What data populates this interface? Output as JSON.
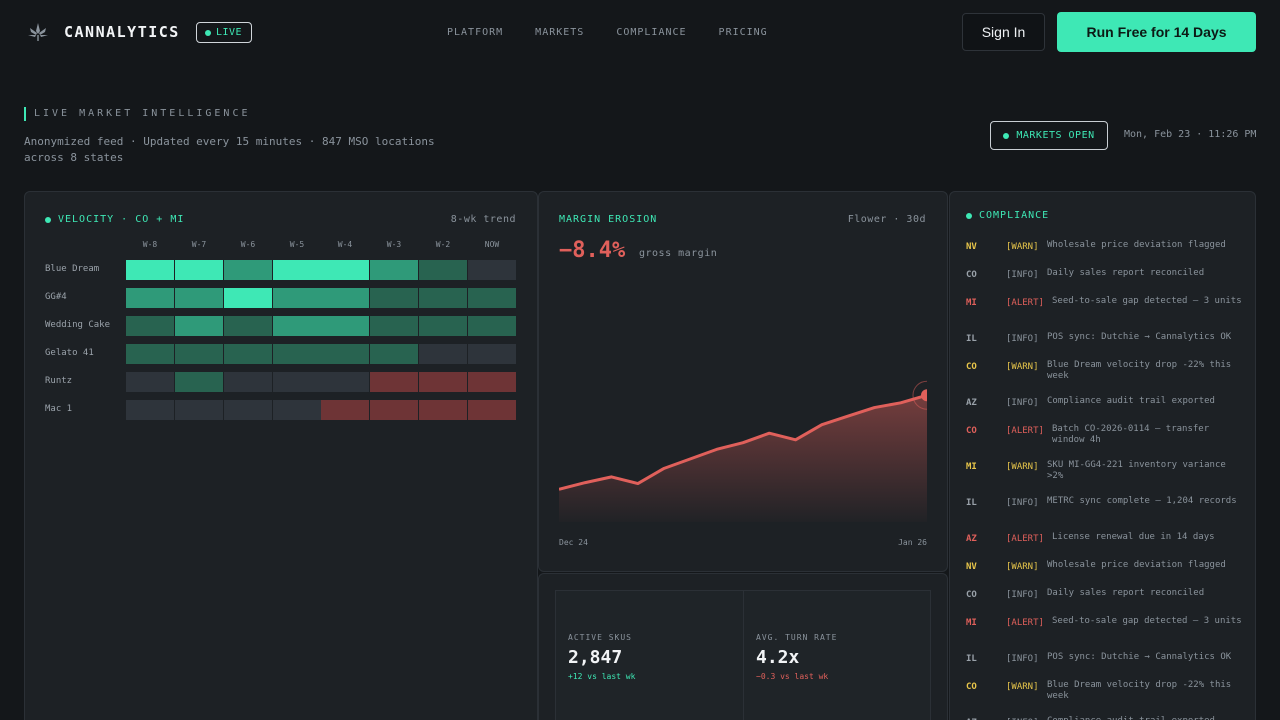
{
  "colors": {
    "accent": "#3ee8b5",
    "negative": "#e0605b",
    "warn": "#e8c64a",
    "muted": "#8a939c"
  },
  "nav": {
    "logo_icon": "cannabis-leaf-icon",
    "brand": "CANNALYTICS",
    "live_badge": "LIVE",
    "links": [
      "PLATFORM",
      "MARKETS",
      "COMPLIANCE",
      "PRICING"
    ],
    "signin": "Sign In",
    "cta": "Run Free for 14 Days"
  },
  "header": {
    "label": "LIVE MARKET INTELLIGENCE",
    "subtitle": "Anonymized feed · Updated every 15 minutes · 847 MSO locations across 8 states",
    "status": "MARKETS OPEN",
    "datetime": "Mon, Feb 23 · 11:26 PM"
  },
  "velocity": {
    "title": "VELOCITY · CO + MI",
    "meta": "8-wk trend",
    "columns": [
      "W-8",
      "W-7",
      "W-6",
      "W-5",
      "W-4",
      "W-3",
      "W-2",
      "NOW"
    ],
    "rows": [
      {
        "label": "Blue Dream",
        "levels": [
          4,
          4,
          3,
          4,
          4,
          3,
          2,
          0
        ]
      },
      {
        "label": "GG#4",
        "levels": [
          3,
          3,
          4,
          3,
          3,
          2,
          2,
          2
        ]
      },
      {
        "label": "Wedding Cake",
        "levels": [
          2,
          3,
          2,
          3,
          3,
          2,
          2,
          2
        ]
      },
      {
        "label": "Gelato 41",
        "levels": [
          2,
          2,
          2,
          2,
          2,
          2,
          0,
          0
        ]
      },
      {
        "label": "Runtz",
        "levels": [
          0,
          2,
          0,
          0,
          0,
          -1,
          -1,
          -1
        ]
      },
      {
        "label": "Mac 1",
        "levels": [
          0,
          0,
          0,
          0,
          -1,
          -1,
          -1,
          -1
        ]
      }
    ]
  },
  "margin": {
    "title": "MARGIN EROSION",
    "meta": "Flower · 30d",
    "value": "−8.4%",
    "unit": "gross margin",
    "x_start": "Dec 24",
    "x_end": "Jan 26"
  },
  "chart_data": {
    "type": "area",
    "title": "MARGIN EROSION",
    "xlabel": "",
    "ylabel": "",
    "x": [
      "Dec 24",
      "",
      "",
      "",
      "",
      "",
      "",
      "",
      "",
      "",
      "",
      "",
      "",
      "",
      "Jan 26"
    ],
    "values": [
      5,
      12,
      18,
      11,
      27,
      37,
      47,
      54,
      64,
      57,
      73,
      82,
      91,
      96,
      104
    ],
    "ylim": [
      0,
      160
    ],
    "grid": false
  },
  "stats": [
    {
      "label": "ACTIVE SKUS",
      "value": "2,847",
      "delta": "+12 vs last wk",
      "trend": "up"
    },
    {
      "label": "AVG. TURN RATE",
      "value": "4.2x",
      "delta": "−0.3 vs last wk",
      "trend": "down"
    }
  ],
  "compliance": {
    "title": "COMPLIANCE",
    "entries": [
      {
        "state": "NV",
        "level": "[WARN]",
        "msg": "Wholesale price deviation flagged"
      },
      {
        "state": "CO",
        "level": "[INFO]",
        "msg": "Daily sales report reconciled"
      },
      {
        "state": "MI",
        "level": "[ALERT]",
        "msg": "Seed-to-sale gap detected — 3 units"
      },
      {
        "state": "IL",
        "level": "[INFO]",
        "msg": "POS sync: Dutchie → Cannalytics OK"
      },
      {
        "state": "CO",
        "level": "[WARN]",
        "msg": "Blue Dream velocity drop -22% this week"
      },
      {
        "state": "AZ",
        "level": "[INFO]",
        "msg": "Compliance audit trail exported"
      },
      {
        "state": "CO",
        "level": "[ALERT]",
        "msg": "Batch CO-2026-0114 — transfer window 4h"
      },
      {
        "state": "MI",
        "level": "[WARN]",
        "msg": "SKU MI-GG4-221 inventory variance >2%"
      },
      {
        "state": "IL",
        "level": "[INFO]",
        "msg": "METRC sync complete — 1,204 records"
      },
      {
        "state": "AZ",
        "level": "[ALERT]",
        "msg": "License renewal due in 14 days"
      },
      {
        "state": "NV",
        "level": "[WARN]",
        "msg": "Wholesale price deviation flagged"
      },
      {
        "state": "CO",
        "level": "[INFO]",
        "msg": "Daily sales report reconciled"
      },
      {
        "state": "MI",
        "level": "[ALERT]",
        "msg": "Seed-to-sale gap detected — 3 units"
      },
      {
        "state": "IL",
        "level": "[INFO]",
        "msg": "POS sync: Dutchie → Cannalytics OK"
      },
      {
        "state": "CO",
        "level": "[WARN]",
        "msg": "Blue Dream velocity drop -22% this week"
      },
      {
        "state": "AZ",
        "level": "[INFO]",
        "msg": "Compliance audit trail exported"
      }
    ]
  }
}
